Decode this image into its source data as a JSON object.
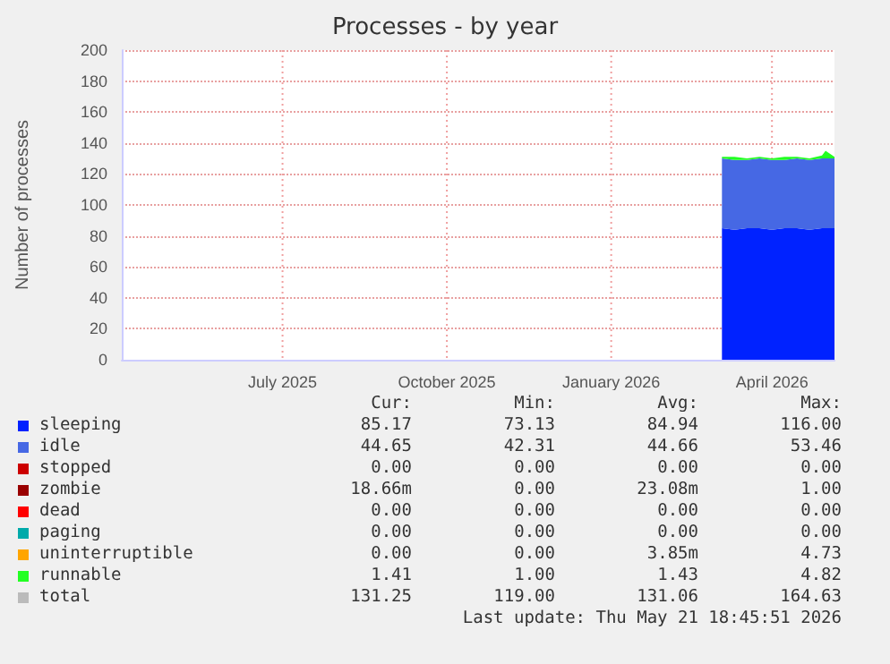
{
  "chart_data": {
    "type": "area",
    "title": "Processes - by year",
    "ylabel": "Number of processes",
    "stacked": true,
    "grid": true,
    "legend": "bottom",
    "marker": "none",
    "x": [
      "2026-03-19",
      "2026-03-26",
      "2026-04-02",
      "2026-04-09",
      "2026-04-16",
      "2026-04-23",
      "2026-04-30",
      "2026-05-07",
      "2026-05-14",
      "2026-05-16",
      "2026-05-21"
    ],
    "xlim": [
      "2025-04-17",
      "2026-05-21"
    ],
    "xticks": [
      {
        "value": "2025-07-16",
        "label": "July 2025"
      },
      {
        "value": "2025-10-16",
        "label": "October 2025"
      },
      {
        "value": "2026-01-16",
        "label": "January 2026"
      },
      {
        "value": "2026-04-16",
        "label": "April 2026"
      }
    ],
    "ylim": [
      0,
      200
    ],
    "yticks": [
      0,
      20,
      40,
      60,
      80,
      100,
      120,
      140,
      160,
      180,
      200
    ],
    "series": [
      {
        "name": "sleeping",
        "color": "#0022ff",
        "values": [
          85,
          84,
          85,
          85,
          84,
          85,
          85,
          84,
          85,
          85,
          85
        ]
      },
      {
        "name": "idle",
        "color": "#4668e4",
        "values": [
          45,
          45,
          44,
          45,
          45,
          44,
          45,
          45,
          45,
          45,
          45
        ]
      },
      {
        "name": "stopped",
        "color": "#cc0000",
        "values": [
          null,
          null,
          null,
          null,
          null,
          null,
          null,
          null,
          null,
          null,
          null
        ]
      },
      {
        "name": "zombie",
        "color": "#990000",
        "values": [
          null,
          null,
          null,
          null,
          null,
          null,
          null,
          null,
          null,
          null,
          null
        ]
      },
      {
        "name": "dead",
        "color": "#ff0000",
        "values": [
          null,
          null,
          null,
          null,
          null,
          null,
          null,
          null,
          null,
          null,
          null
        ]
      },
      {
        "name": "paging",
        "color": "#00aaaa",
        "values": [
          null,
          null,
          null,
          null,
          null,
          null,
          null,
          null,
          null,
          null,
          null
        ]
      },
      {
        "name": "uninterruptible",
        "color": "#ffa500",
        "values": [
          null,
          null,
          null,
          null,
          null,
          null,
          null,
          null,
          null,
          null,
          null
        ]
      },
      {
        "name": "runnable",
        "color": "#22ff22",
        "values": [
          1,
          2,
          1,
          1,
          1,
          2,
          1,
          1,
          2,
          5,
          1
        ]
      },
      {
        "name": "total",
        "color": "#bbbbbb",
        "values": [
          null,
          null,
          null,
          null,
          null,
          null,
          null,
          null,
          null,
          null,
          null
        ]
      }
    ],
    "annotations": [
      "Cur:",
      "Min:",
      "Avg:",
      "Max:",
      "85.17",
      "73.13",
      "84.94",
      "116.00",
      "44.65",
      "42.31",
      "44.66",
      "53.46",
      "0.00",
      "0.00",
      "0.00",
      "0.00",
      "18.66m",
      "0.00",
      "23.08m",
      "1.00",
      "0.00",
      "0.00",
      "0.00",
      "0.00",
      "0.00",
      "0.00",
      "0.00",
      "0.00",
      "0.00",
      "0.00",
      "3.85m",
      "4.73",
      "1.41",
      "1.00",
      "1.43",
      "4.82",
      "131.25",
      "119.00",
      "131.06",
      "164.63",
      "Last update: Thu May 21 18:45:51 2026"
    ]
  }
}
